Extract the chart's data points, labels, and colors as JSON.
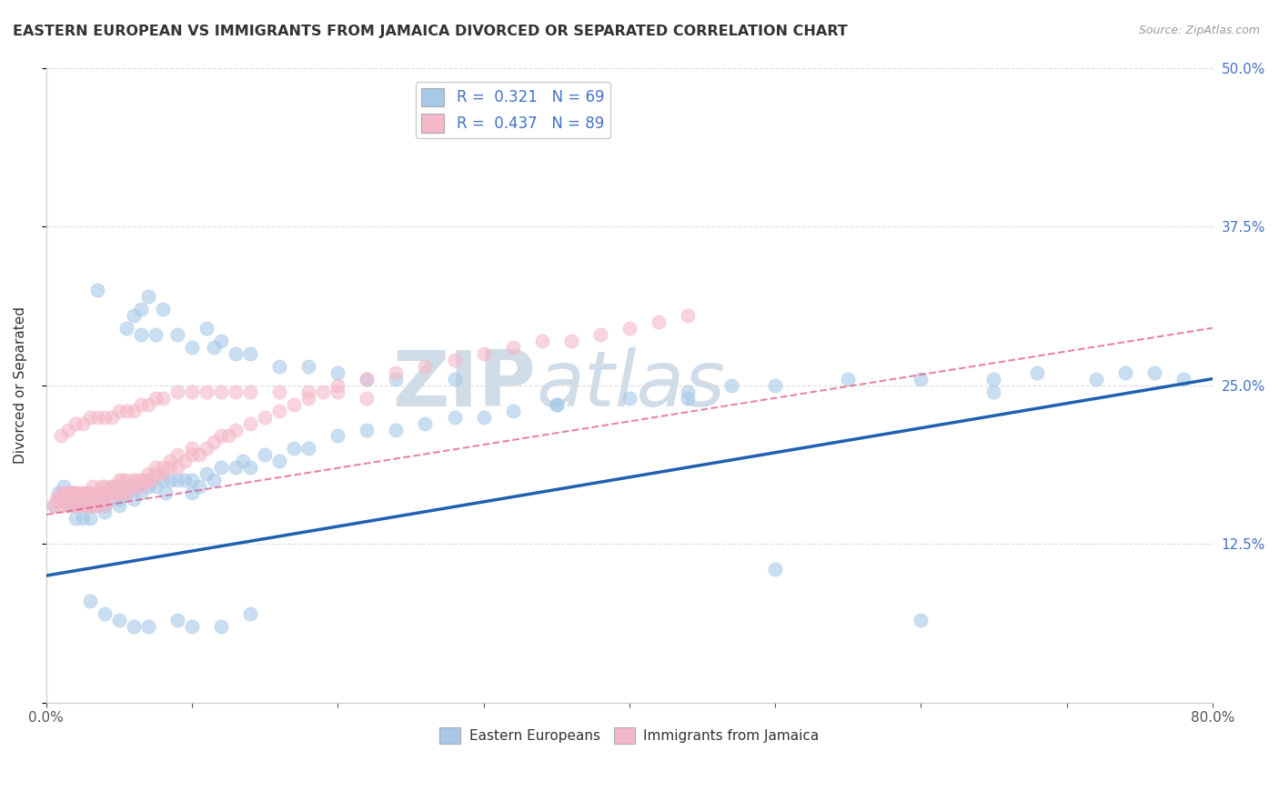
{
  "title": "EASTERN EUROPEAN VS IMMIGRANTS FROM JAMAICA DIVORCED OR SEPARATED CORRELATION CHART",
  "source": "Source: ZipAtlas.com",
  "ylabel": "Divorced or Separated",
  "xlim": [
    0.0,
    0.8
  ],
  "ylim": [
    0.0,
    0.5
  ],
  "legend1_R": "0.321",
  "legend1_N": "69",
  "legend2_R": "0.437",
  "legend2_N": "89",
  "color_blue": "#a8c8e8",
  "color_pink": "#f4b8c8",
  "line_color_blue": "#2060b0",
  "line_color_pink": "#e05080",
  "blue_line_x0": 0.0,
  "blue_line_y0": 0.1,
  "blue_line_x1": 0.8,
  "blue_line_y1": 0.255,
  "pink_line_x0": 0.0,
  "pink_line_y0": 0.148,
  "pink_line_x1": 0.8,
  "pink_line_y1": 0.295,
  "blue_x": [
    0.005,
    0.008,
    0.01,
    0.012,
    0.015,
    0.018,
    0.02,
    0.02,
    0.022,
    0.025,
    0.025,
    0.028,
    0.03,
    0.03,
    0.032,
    0.035,
    0.038,
    0.04,
    0.04,
    0.042,
    0.045,
    0.048,
    0.05,
    0.05,
    0.052,
    0.055,
    0.06,
    0.062,
    0.065,
    0.07,
    0.075,
    0.08,
    0.082,
    0.085,
    0.09,
    0.095,
    0.1,
    0.1,
    0.105,
    0.11,
    0.115,
    0.12,
    0.13,
    0.135,
    0.14,
    0.15,
    0.16,
    0.17,
    0.18,
    0.2,
    0.22,
    0.24,
    0.26,
    0.28,
    0.3,
    0.32,
    0.35,
    0.4,
    0.44,
    0.47,
    0.5,
    0.55,
    0.6,
    0.65,
    0.68,
    0.72,
    0.74,
    0.76,
    0.78
  ],
  "blue_y": [
    0.155,
    0.165,
    0.16,
    0.17,
    0.155,
    0.165,
    0.155,
    0.145,
    0.16,
    0.155,
    0.145,
    0.165,
    0.155,
    0.145,
    0.16,
    0.155,
    0.165,
    0.155,
    0.15,
    0.165,
    0.17,
    0.165,
    0.16,
    0.155,
    0.17,
    0.165,
    0.16,
    0.17,
    0.165,
    0.17,
    0.17,
    0.175,
    0.165,
    0.175,
    0.175,
    0.175,
    0.175,
    0.165,
    0.17,
    0.18,
    0.175,
    0.185,
    0.185,
    0.19,
    0.185,
    0.195,
    0.19,
    0.2,
    0.2,
    0.21,
    0.215,
    0.215,
    0.22,
    0.225,
    0.225,
    0.23,
    0.235,
    0.24,
    0.245,
    0.25,
    0.25,
    0.255,
    0.255,
    0.255,
    0.26,
    0.255,
    0.26,
    0.26,
    0.255
  ],
  "blue_outliers_x": [
    0.035,
    0.055,
    0.06,
    0.065,
    0.065,
    0.07,
    0.075,
    0.08,
    0.09,
    0.1,
    0.11,
    0.115,
    0.12,
    0.13,
    0.14,
    0.16,
    0.18,
    0.2,
    0.22,
    0.24,
    0.28,
    0.35,
    0.44,
    0.65,
    0.03,
    0.04,
    0.05,
    0.06,
    0.07,
    0.09,
    0.1,
    0.12,
    0.14,
    0.5,
    0.6
  ],
  "blue_outliers_y": [
    0.325,
    0.295,
    0.305,
    0.31,
    0.29,
    0.32,
    0.29,
    0.31,
    0.29,
    0.28,
    0.295,
    0.28,
    0.285,
    0.275,
    0.275,
    0.265,
    0.265,
    0.26,
    0.255,
    0.255,
    0.255,
    0.235,
    0.24,
    0.245,
    0.08,
    0.07,
    0.065,
    0.06,
    0.06,
    0.065,
    0.06,
    0.06,
    0.07,
    0.105,
    0.065
  ],
  "pink_x": [
    0.005,
    0.007,
    0.008,
    0.01,
    0.01,
    0.012,
    0.013,
    0.015,
    0.015,
    0.017,
    0.018,
    0.02,
    0.02,
    0.022,
    0.022,
    0.025,
    0.025,
    0.027,
    0.028,
    0.03,
    0.03,
    0.03,
    0.032,
    0.032,
    0.035,
    0.035,
    0.037,
    0.038,
    0.04,
    0.04,
    0.04,
    0.042,
    0.042,
    0.045,
    0.045,
    0.047,
    0.048,
    0.05,
    0.05,
    0.052,
    0.052,
    0.055,
    0.055,
    0.057,
    0.06,
    0.06,
    0.062,
    0.065,
    0.065,
    0.067,
    0.07,
    0.07,
    0.072,
    0.075,
    0.075,
    0.08,
    0.08,
    0.085,
    0.085,
    0.09,
    0.09,
    0.095,
    0.1,
    0.1,
    0.105,
    0.11,
    0.115,
    0.12,
    0.125,
    0.13,
    0.14,
    0.15,
    0.16,
    0.17,
    0.18,
    0.19,
    0.2,
    0.22,
    0.24,
    0.26,
    0.28,
    0.3,
    0.32,
    0.34,
    0.36,
    0.38,
    0.4,
    0.42,
    0.44
  ],
  "pink_y": [
    0.155,
    0.16,
    0.16,
    0.155,
    0.165,
    0.16,
    0.165,
    0.155,
    0.165,
    0.16,
    0.165,
    0.155,
    0.165,
    0.155,
    0.165,
    0.155,
    0.165,
    0.155,
    0.165,
    0.155,
    0.16,
    0.165,
    0.155,
    0.17,
    0.155,
    0.165,
    0.16,
    0.17,
    0.155,
    0.165,
    0.17,
    0.16,
    0.165,
    0.165,
    0.17,
    0.165,
    0.17,
    0.165,
    0.175,
    0.165,
    0.175,
    0.165,
    0.175,
    0.17,
    0.17,
    0.175,
    0.175,
    0.17,
    0.175,
    0.175,
    0.175,
    0.18,
    0.175,
    0.18,
    0.185,
    0.18,
    0.185,
    0.185,
    0.19,
    0.185,
    0.195,
    0.19,
    0.195,
    0.2,
    0.195,
    0.2,
    0.205,
    0.21,
    0.21,
    0.215,
    0.22,
    0.225,
    0.23,
    0.235,
    0.24,
    0.245,
    0.25,
    0.255,
    0.26,
    0.265,
    0.27,
    0.275,
    0.28,
    0.285,
    0.285,
    0.29,
    0.295,
    0.3,
    0.305
  ],
  "pink_outliers_x": [
    0.01,
    0.015,
    0.02,
    0.025,
    0.03,
    0.035,
    0.04,
    0.045,
    0.05,
    0.055,
    0.06,
    0.065,
    0.07,
    0.075,
    0.08,
    0.09,
    0.1,
    0.11,
    0.12,
    0.13,
    0.14,
    0.16,
    0.18,
    0.2,
    0.22
  ],
  "pink_outliers_y": [
    0.21,
    0.215,
    0.22,
    0.22,
    0.225,
    0.225,
    0.225,
    0.225,
    0.23,
    0.23,
    0.23,
    0.235,
    0.235,
    0.24,
    0.24,
    0.245,
    0.245,
    0.245,
    0.245,
    0.245,
    0.245,
    0.245,
    0.245,
    0.245,
    0.24
  ]
}
